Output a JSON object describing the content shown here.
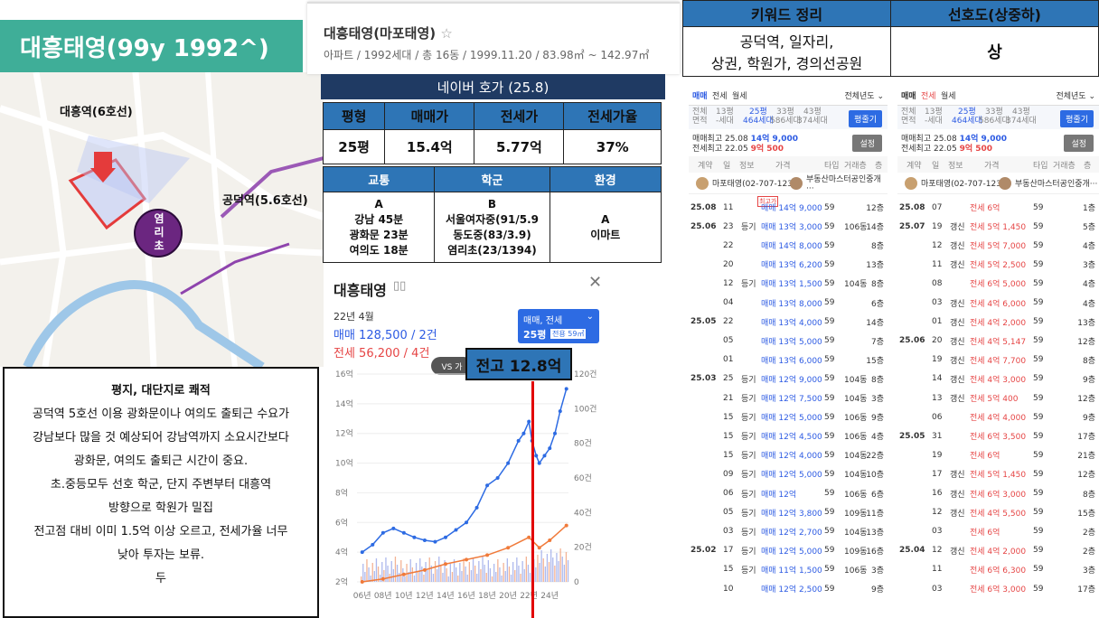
{
  "title": "대흥태영(99y 1992^)",
  "apt": {
    "name": "대흥태영(마포태영)",
    "star": "☆",
    "sub": "아파트 / 1992세대 / 총 16동 / 1999.11.20 / 83.98㎡ ~ 142.97㎡"
  },
  "map": {
    "stations": [
      "대흥역(6호선)",
      "공덕역(5.6호선)"
    ],
    "school_badge": "염리초"
  },
  "naver_header": "네이버 호가 (25.8)",
  "price_table": {
    "headers": [
      "평형",
      "매매가",
      "전세가",
      "전세가율"
    ],
    "values": [
      "25평",
      "15.4억",
      "5.77억",
      "37%"
    ]
  },
  "env_table": {
    "headers": [
      "교통",
      "학군",
      "환경"
    ],
    "traffic": [
      "A",
      "강남 45분",
      "광화문 23분",
      "여의도 18분"
    ],
    "school": [
      "B",
      "서울여자중(91/5.9",
      "동도중(83/3.9)",
      "염리초(23/1394)"
    ],
    "env": [
      "A",
      "이마트"
    ]
  },
  "kw_table": {
    "headers": [
      "키워드 정리",
      "선호도(상중하)"
    ],
    "keywords": [
      "공덕역, 일자리,",
      "상권, 학원가, 경의선공원"
    ],
    "pref": "상"
  },
  "note": {
    "title": "평지, 대단지로 쾌적",
    "lines": [
      "공덕역 5호선 이용 광화문이나 여의도 출퇴근 수요가",
      "강남보다 많을 것 예상되어 강남역까지 소요시간보다",
      "광화문, 여의도 출퇴근 시간이 중요.",
      "초.중등모두 선호 학군, 단지 주변부터 대흥역",
      "방향으로 학원가 밀집",
      "전고점 대비 이미 1.5억 이상 오르고, 전세가율 너무",
      "낮아 투자는 보류.",
      "두"
    ]
  },
  "chart_panel": {
    "name": "대흥태영",
    "date": "22년 4월",
    "sale": "매매 128,500 / 2건",
    "jeonse": "전세 56,200 / 4건",
    "filter": "매매, 전세",
    "size": "25평",
    "size_sub": "전용 59㎡",
    "vs": "VS 가",
    "close": "✕",
    "peak_label": "전고 12.8억"
  },
  "chart_data": {
    "type": "line",
    "x_ticks": [
      "06년",
      "08년",
      "10년",
      "12년",
      "14년",
      "16년",
      "18년",
      "20년",
      "22년",
      "24년"
    ],
    "y_left_ticks": [
      "2억",
      "4억",
      "6억",
      "8억",
      "10억",
      "12억",
      "14억",
      "16억"
    ],
    "y_right_ticks": [
      "0",
      "20건",
      "40건",
      "60건",
      "80건",
      "100건",
      "120건"
    ],
    "ylim": [
      2,
      16
    ],
    "series": [
      {
        "name": "매매",
        "color": "#2d6be3",
        "x": [
          2006,
          2007,
          2008,
          2009,
          2010,
          2011,
          2012,
          2013,
          2014,
          2015,
          2016,
          2017,
          2018,
          2019,
          2020,
          2021,
          2021.5,
          2022,
          2022.3,
          2022.7,
          2023,
          2023.5,
          2024,
          2024.5,
          2025,
          2025.6
        ],
        "values": [
          4.0,
          4.5,
          5.3,
          5.6,
          5.3,
          5.0,
          4.8,
          4.7,
          5.0,
          5.5,
          6.0,
          7.0,
          8.5,
          9.0,
          10.0,
          11.5,
          12.0,
          12.8,
          11.5,
          10.5,
          10.0,
          10.5,
          11.0,
          12.0,
          13.5,
          15.0
        ]
      },
      {
        "name": "전세",
        "color": "#f07a3a",
        "x": [
          2006,
          2008,
          2010,
          2012,
          2014,
          2016,
          2018,
          2020,
          2022,
          2023,
          2024,
          2025.6
        ],
        "values": [
          2.0,
          2.2,
          2.5,
          2.8,
          3.2,
          3.5,
          3.8,
          4.3,
          5.0,
          4.3,
          4.8,
          5.8
        ]
      }
    ]
  },
  "list_left": {
    "tabs": [
      "매매",
      "전세",
      "월세"
    ],
    "year_sel": "전체년도 ⌄",
    "sizes": [
      {
        "top": "13평",
        "bot": "-세대"
      },
      {
        "top": "25평",
        "bot": "464세대"
      },
      {
        "top": "33평",
        "bot": "586세대"
      },
      {
        "top": "43평",
        "bot": "374세대"
      }
    ],
    "btn1": "평줄기",
    "btn2": "설정",
    "summary1": "매매최고 25.08  14억 9,000",
    "summary2": "전세최고 22.05  9억 500",
    "cols": [
      "계약",
      "일",
      "정보",
      "가격",
      "타입",
      "거래층",
      "층"
    ],
    "agent": "마포태영(02-707-123···",
    "agent2": "부동산마스터공인중개···",
    "rows": [
      {
        "ym": "25.08",
        "d": "11",
        "info": "",
        "price": "매매 14억 9,000",
        "type": "59",
        "dong": "",
        "fl": "12층",
        "tag": "최고가"
      },
      {
        "ym": "25.06",
        "d": "23",
        "info": "등기",
        "price": "매매 13억 3,000",
        "type": "59",
        "dong": "106동",
        "fl": "14층"
      },
      {
        "ym": "",
        "d": "22",
        "info": "",
        "price": "매매 14억 8,000",
        "type": "59",
        "dong": "",
        "fl": "8층"
      },
      {
        "ym": "",
        "d": "20",
        "info": "",
        "price": "매매 13억 6,200",
        "type": "59",
        "dong": "",
        "fl": "13층"
      },
      {
        "ym": "",
        "d": "12",
        "info": "등기",
        "price": "매매 13억 1,500",
        "type": "59",
        "dong": "104동",
        "fl": "8층"
      },
      {
        "ym": "",
        "d": "04",
        "info": "",
        "price": "매매 13억 8,000",
        "type": "59",
        "dong": "",
        "fl": "6층"
      },
      {
        "ym": "25.05",
        "d": "22",
        "info": "",
        "price": "매매 13억 4,000",
        "type": "59",
        "dong": "",
        "fl": "14층"
      },
      {
        "ym": "",
        "d": "05",
        "info": "",
        "price": "매매 13억 5,000",
        "type": "59",
        "dong": "",
        "fl": "7층"
      },
      {
        "ym": "",
        "d": "01",
        "info": "",
        "price": "매매 13억 6,000",
        "type": "59",
        "dong": "",
        "fl": "15층"
      },
      {
        "ym": "25.03",
        "d": "25",
        "info": "등기",
        "price": "매매 12억 9,000",
        "type": "59",
        "dong": "104동",
        "fl": "8층"
      },
      {
        "ym": "",
        "d": "21",
        "info": "등기",
        "price": "매매 12억 7,500",
        "type": "59",
        "dong": "104동",
        "fl": "3층"
      },
      {
        "ym": "",
        "d": "15",
        "info": "등기",
        "price": "매매 12억 5,000",
        "type": "59",
        "dong": "106동",
        "fl": "9층"
      },
      {
        "ym": "",
        "d": "15",
        "info": "등기",
        "price": "매매 12억 4,500",
        "type": "59",
        "dong": "106동",
        "fl": "4층"
      },
      {
        "ym": "",
        "d": "15",
        "info": "등기",
        "price": "매매 12억 4,000",
        "type": "59",
        "dong": "104동",
        "fl": "22층"
      },
      {
        "ym": "",
        "d": "09",
        "info": "등기",
        "price": "매매 12억 5,000",
        "type": "59",
        "dong": "104동",
        "fl": "10층"
      },
      {
        "ym": "",
        "d": "06",
        "info": "등기",
        "price": "매매 12억",
        "type": "59",
        "dong": "106동",
        "fl": "6층"
      },
      {
        "ym": "",
        "d": "05",
        "info": "등기",
        "price": "매매 12억 3,800",
        "type": "59",
        "dong": "109동",
        "fl": "11층"
      },
      {
        "ym": "",
        "d": "03",
        "info": "등기",
        "price": "매매 12억 2,700",
        "type": "59",
        "dong": "104동",
        "fl": "13층"
      },
      {
        "ym": "25.02",
        "d": "17",
        "info": "등기",
        "price": "매매 12억 5,000",
        "type": "59",
        "dong": "109동",
        "fl": "16층"
      },
      {
        "ym": "",
        "d": "15",
        "info": "등기",
        "price": "매매 11억 1,500",
        "type": "59",
        "dong": "106동",
        "fl": "3층"
      },
      {
        "ym": "",
        "d": "10",
        "info": "",
        "price": "매매 12억 2,500",
        "type": "59",
        "dong": "",
        "fl": "9층"
      }
    ]
  },
  "list_right": {
    "tabs": [
      "매매",
      "전세",
      "월세"
    ],
    "year_sel": "전체년도 ⌄",
    "summary1": "매매최고 25.08  14억 9,000",
    "summary2": "전세최고 22.05  9억 500",
    "rows": [
      {
        "ym": "25.08",
        "d": "07",
        "info": "",
        "price": "전세 6억",
        "type": "59",
        "fl": "1층"
      },
      {
        "ym": "25.07",
        "d": "19",
        "info": "갱신",
        "price": "전세 5억 1,450",
        "type": "59",
        "fl": "5층"
      },
      {
        "ym": "",
        "d": "12",
        "info": "갱신",
        "price": "전세 5억 7,000",
        "type": "59",
        "fl": "4층"
      },
      {
        "ym": "",
        "d": "11",
        "info": "갱신",
        "price": "전세 5억 2,500",
        "type": "59",
        "fl": "3층"
      },
      {
        "ym": "",
        "d": "08",
        "info": "",
        "price": "전세 6억 5,000",
        "type": "59",
        "fl": "4층"
      },
      {
        "ym": "",
        "d": "03",
        "info": "갱신",
        "price": "전세 4억 6,000",
        "type": "59",
        "fl": "4층"
      },
      {
        "ym": "",
        "d": "01",
        "info": "갱신",
        "price": "전세 4억 2,000",
        "type": "59",
        "fl": "13층"
      },
      {
        "ym": "25.06",
        "d": "20",
        "info": "갱신",
        "price": "전세 4억 5,147",
        "type": "59",
        "fl": "12층"
      },
      {
        "ym": "",
        "d": "19",
        "info": "갱신",
        "price": "전세 4억 7,700",
        "type": "59",
        "fl": "8층"
      },
      {
        "ym": "",
        "d": "14",
        "info": "갱신",
        "price": "전세 4억 3,000",
        "type": "59",
        "fl": "9층"
      },
      {
        "ym": "",
        "d": "13",
        "info": "갱신",
        "price": "전세 5억 400",
        "type": "59",
        "fl": "12층"
      },
      {
        "ym": "",
        "d": "06",
        "info": "",
        "price": "전세 4억 4,000",
        "type": "59",
        "fl": "9층"
      },
      {
        "ym": "25.05",
        "d": "31",
        "info": "",
        "price": "전세 6억 3,500",
        "type": "59",
        "fl": "17층"
      },
      {
        "ym": "",
        "d": "19",
        "info": "",
        "price": "전세 6억",
        "type": "59",
        "fl": "21층"
      },
      {
        "ym": "",
        "d": "17",
        "info": "갱신",
        "price": "전세 5억 1,450",
        "type": "59",
        "fl": "12층"
      },
      {
        "ym": "",
        "d": "16",
        "info": "갱신",
        "price": "전세 6억 3,000",
        "type": "59",
        "fl": "8층"
      },
      {
        "ym": "",
        "d": "12",
        "info": "갱신",
        "price": "전세 4억 5,500",
        "type": "59",
        "fl": "15층"
      },
      {
        "ym": "",
        "d": "03",
        "info": "",
        "price": "전세 6억",
        "type": "59",
        "fl": "2층"
      },
      {
        "ym": "25.04",
        "d": "12",
        "info": "갱신",
        "price": "전세 4억 2,000",
        "type": "59",
        "fl": "2층"
      },
      {
        "ym": "",
        "d": "11",
        "info": "",
        "price": "전세 6억 6,300",
        "type": "59",
        "fl": "3층"
      },
      {
        "ym": "",
        "d": "03",
        "info": "",
        "price": "전세 6억 3,000",
        "type": "59",
        "fl": "17층"
      }
    ]
  }
}
